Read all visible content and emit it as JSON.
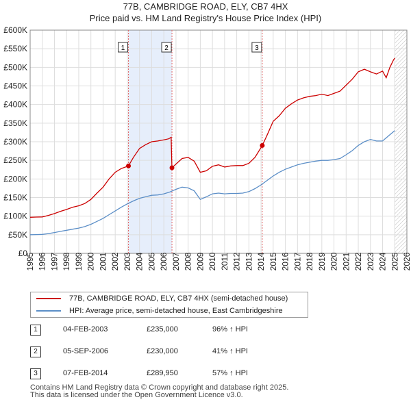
{
  "chart_data": {
    "type": "line",
    "title": "77B, CAMBRIDGE ROAD, ELY, CB7 4HX",
    "subtitle": "Price paid vs. HM Land Registry's House Price Index (HPI)",
    "xlabel": "",
    "ylabel": "",
    "xlim": [
      1995,
      2026
    ],
    "ylim": [
      0,
      600000
    ],
    "x_ticks": [
      "1995",
      "1996",
      "1997",
      "1998",
      "1999",
      "2000",
      "2001",
      "2002",
      "2003",
      "2004",
      "2005",
      "2006",
      "2007",
      "2008",
      "2009",
      "2010",
      "2011",
      "2012",
      "2013",
      "2014",
      "2015",
      "2016",
      "2017",
      "2018",
      "2019",
      "2020",
      "2021",
      "2022",
      "2023",
      "2024",
      "2025",
      "2026"
    ],
    "y_ticks": [
      {
        "value": 0,
        "label": "£0"
      },
      {
        "value": 50000,
        "label": "£50K"
      },
      {
        "value": 100000,
        "label": "£100K"
      },
      {
        "value": 150000,
        "label": "£150K"
      },
      {
        "value": 200000,
        "label": "£200K"
      },
      {
        "value": 250000,
        "label": "£250K"
      },
      {
        "value": 300000,
        "label": "£300K"
      },
      {
        "value": 350000,
        "label": "£350K"
      },
      {
        "value": 400000,
        "label": "£400K"
      },
      {
        "value": 450000,
        "label": "£450K"
      },
      {
        "value": 500000,
        "label": "£500K"
      },
      {
        "value": 550000,
        "label": "£550K"
      },
      {
        "value": 600000,
        "label": "£600K"
      }
    ],
    "grid": true,
    "shaded_ranges": [
      [
        2003.09,
        2006.67
      ],
      [
        2014.1,
        2014.1
      ]
    ],
    "future_hatch_start": 2025.0,
    "series": [
      {
        "name": "77B, CAMBRIDGE ROAD, ELY, CB7 4HX (semi-detached house)",
        "color": "#cc0000",
        "x": [
          1995,
          1995.5,
          1996,
          1996.5,
          1997,
          1997.5,
          1998,
          1998.5,
          1999,
          1999.5,
          2000,
          2000.5,
          2001,
          2001.5,
          2002,
          2002.5,
          2003.09,
          2003.5,
          2004,
          2004.5,
          2005,
          2005.5,
          2006,
          2006.4,
          2006.6,
          2006.67,
          2007,
          2007.5,
          2008,
          2008.5,
          2009,
          2009.5,
          2010,
          2010.5,
          2011,
          2011.5,
          2012,
          2012.5,
          2013,
          2013.5,
          2014.1,
          2014.5,
          2015,
          2015.5,
          2016,
          2016.5,
          2017,
          2017.5,
          2018,
          2018.5,
          2019,
          2019.5,
          2020,
          2020.5,
          2021,
          2021.5,
          2022,
          2022.5,
          2023,
          2023.5,
          2024,
          2024.3,
          2024.6,
          2024.9,
          2025.0
        ],
        "values": [
          97000,
          97500,
          98000,
          102000,
          107000,
          113000,
          118000,
          124000,
          128000,
          134000,
          145000,
          162000,
          178000,
          200000,
          218000,
          228000,
          235000,
          258000,
          282000,
          292000,
          300000,
          302000,
          305000,
          308000,
          312000,
          230000,
          240000,
          255000,
          258000,
          248000,
          218000,
          222000,
          234000,
          238000,
          232000,
          235000,
          236000,
          236000,
          242000,
          258000,
          289950,
          318000,
          355000,
          370000,
          390000,
          402000,
          412000,
          418000,
          422000,
          424000,
          428000,
          424000,
          430000,
          436000,
          452000,
          468000,
          488000,
          495000,
          488000,
          482000,
          490000,
          472000,
          500000,
          520000,
          525000
        ]
      },
      {
        "name": "HPI: Average price, semi-detached house, East Cambridgeshire",
        "color": "#5b8ec7",
        "x": [
          1995,
          1995.5,
          1996,
          1996.5,
          1997,
          1997.5,
          1998,
          1998.5,
          1999,
          1999.5,
          2000,
          2000.5,
          2001,
          2001.5,
          2002,
          2002.5,
          2003,
          2003.5,
          2004,
          2004.5,
          2005,
          2005.5,
          2006,
          2006.5,
          2007,
          2007.5,
          2008,
          2008.5,
          2009,
          2009.5,
          2010,
          2010.5,
          2011,
          2011.5,
          2012,
          2012.5,
          2013,
          2013.5,
          2014,
          2014.5,
          2015,
          2015.5,
          2016,
          2016.5,
          2017,
          2017.5,
          2018,
          2018.5,
          2019,
          2019.5,
          2020,
          2020.5,
          2021,
          2021.5,
          2022,
          2022.5,
          2023,
          2023.5,
          2024,
          2024.5,
          2025.0
        ],
        "values": [
          50000,
          50500,
          51000,
          53000,
          56000,
          59000,
          62000,
          65000,
          68000,
          72000,
          78000,
          86000,
          94000,
          104000,
          114000,
          124000,
          133000,
          141000,
          148000,
          152000,
          156000,
          157000,
          160000,
          165000,
          172000,
          178000,
          176000,
          168000,
          145000,
          152000,
          160000,
          162000,
          160000,
          161000,
          161000,
          162000,
          166000,
          174000,
          184000,
          196000,
          208000,
          218000,
          226000,
          232000,
          238000,
          242000,
          245000,
          248000,
          250000,
          250000,
          252000,
          255000,
          265000,
          276000,
          290000,
          300000,
          306000,
          302000,
          302000,
          316000,
          330000
        ]
      }
    ],
    "markers": [
      {
        "id": "1",
        "x": 2003.09,
        "y": 235000
      },
      {
        "id": "2",
        "x": 2006.67,
        "y": 230000
      },
      {
        "id": "3",
        "x": 2014.1,
        "y": 289950
      }
    ]
  },
  "legend": {
    "items": [
      {
        "label": "77B, CAMBRIDGE ROAD, ELY, CB7 4HX (semi-detached house)",
        "color": "#cc0000"
      },
      {
        "label": "HPI: Average price, semi-detached house, East Cambridgeshire",
        "color": "#5b8ec7"
      }
    ]
  },
  "transactions": [
    {
      "num": "1",
      "date": "04-FEB-2003",
      "price": "£235,000",
      "hpi": "96% ↑ HPI"
    },
    {
      "num": "2",
      "date": "05-SEP-2006",
      "price": "£230,000",
      "hpi": "41% ↑ HPI"
    },
    {
      "num": "3",
      "date": "07-FEB-2014",
      "price": "£289,950",
      "hpi": "57% ↑ HPI"
    }
  ],
  "footer": {
    "line1": "Contains HM Land Registry data © Crown copyright and database right 2025.",
    "line2": "This data is licensed under the Open Government Licence v3.0."
  }
}
